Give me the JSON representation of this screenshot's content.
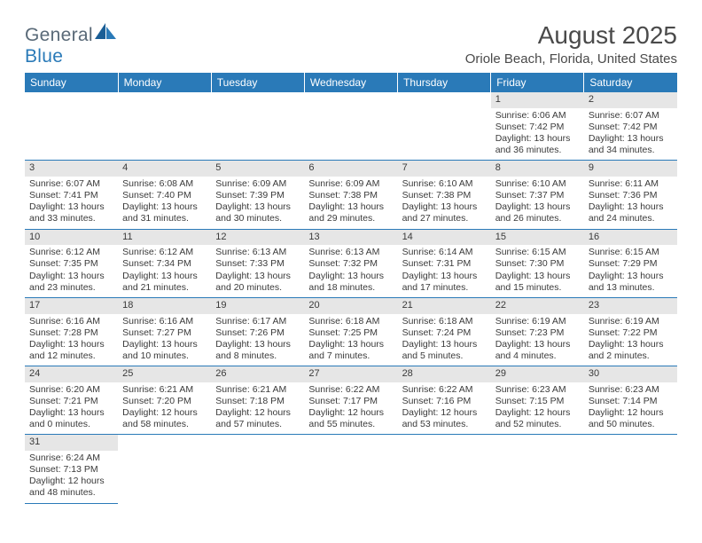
{
  "logo": {
    "text_a": "General",
    "text_b": "Blue"
  },
  "title": "August 2025",
  "location": "Oriole Beach, Florida, United States",
  "colors": {
    "header_bg": "#2a7ab8",
    "header_text": "#ffffff",
    "daynum_bg": "#e6e6e6",
    "text": "#3a3a3a",
    "rule": "#2a7ab8",
    "logo_gray": "#5a6a78",
    "logo_blue": "#2a7ab8"
  },
  "weekdays": [
    "Sunday",
    "Monday",
    "Tuesday",
    "Wednesday",
    "Thursday",
    "Friday",
    "Saturday"
  ],
  "weeks": [
    [
      null,
      null,
      null,
      null,
      null,
      {
        "n": "1",
        "sr": "Sunrise: 6:06 AM",
        "ss": "Sunset: 7:42 PM",
        "d1": "Daylight: 13 hours",
        "d2": "and 36 minutes."
      },
      {
        "n": "2",
        "sr": "Sunrise: 6:07 AM",
        "ss": "Sunset: 7:42 PM",
        "d1": "Daylight: 13 hours",
        "d2": "and 34 minutes."
      }
    ],
    [
      {
        "n": "3",
        "sr": "Sunrise: 6:07 AM",
        "ss": "Sunset: 7:41 PM",
        "d1": "Daylight: 13 hours",
        "d2": "and 33 minutes."
      },
      {
        "n": "4",
        "sr": "Sunrise: 6:08 AM",
        "ss": "Sunset: 7:40 PM",
        "d1": "Daylight: 13 hours",
        "d2": "and 31 minutes."
      },
      {
        "n": "5",
        "sr": "Sunrise: 6:09 AM",
        "ss": "Sunset: 7:39 PM",
        "d1": "Daylight: 13 hours",
        "d2": "and 30 minutes."
      },
      {
        "n": "6",
        "sr": "Sunrise: 6:09 AM",
        "ss": "Sunset: 7:38 PM",
        "d1": "Daylight: 13 hours",
        "d2": "and 29 minutes."
      },
      {
        "n": "7",
        "sr": "Sunrise: 6:10 AM",
        "ss": "Sunset: 7:38 PM",
        "d1": "Daylight: 13 hours",
        "d2": "and 27 minutes."
      },
      {
        "n": "8",
        "sr": "Sunrise: 6:10 AM",
        "ss": "Sunset: 7:37 PM",
        "d1": "Daylight: 13 hours",
        "d2": "and 26 minutes."
      },
      {
        "n": "9",
        "sr": "Sunrise: 6:11 AM",
        "ss": "Sunset: 7:36 PM",
        "d1": "Daylight: 13 hours",
        "d2": "and 24 minutes."
      }
    ],
    [
      {
        "n": "10",
        "sr": "Sunrise: 6:12 AM",
        "ss": "Sunset: 7:35 PM",
        "d1": "Daylight: 13 hours",
        "d2": "and 23 minutes."
      },
      {
        "n": "11",
        "sr": "Sunrise: 6:12 AM",
        "ss": "Sunset: 7:34 PM",
        "d1": "Daylight: 13 hours",
        "d2": "and 21 minutes."
      },
      {
        "n": "12",
        "sr": "Sunrise: 6:13 AM",
        "ss": "Sunset: 7:33 PM",
        "d1": "Daylight: 13 hours",
        "d2": "and 20 minutes."
      },
      {
        "n": "13",
        "sr": "Sunrise: 6:13 AM",
        "ss": "Sunset: 7:32 PM",
        "d1": "Daylight: 13 hours",
        "d2": "and 18 minutes."
      },
      {
        "n": "14",
        "sr": "Sunrise: 6:14 AM",
        "ss": "Sunset: 7:31 PM",
        "d1": "Daylight: 13 hours",
        "d2": "and 17 minutes."
      },
      {
        "n": "15",
        "sr": "Sunrise: 6:15 AM",
        "ss": "Sunset: 7:30 PM",
        "d1": "Daylight: 13 hours",
        "d2": "and 15 minutes."
      },
      {
        "n": "16",
        "sr": "Sunrise: 6:15 AM",
        "ss": "Sunset: 7:29 PM",
        "d1": "Daylight: 13 hours",
        "d2": "and 13 minutes."
      }
    ],
    [
      {
        "n": "17",
        "sr": "Sunrise: 6:16 AM",
        "ss": "Sunset: 7:28 PM",
        "d1": "Daylight: 13 hours",
        "d2": "and 12 minutes."
      },
      {
        "n": "18",
        "sr": "Sunrise: 6:16 AM",
        "ss": "Sunset: 7:27 PM",
        "d1": "Daylight: 13 hours",
        "d2": "and 10 minutes."
      },
      {
        "n": "19",
        "sr": "Sunrise: 6:17 AM",
        "ss": "Sunset: 7:26 PM",
        "d1": "Daylight: 13 hours",
        "d2": "and 8 minutes."
      },
      {
        "n": "20",
        "sr": "Sunrise: 6:18 AM",
        "ss": "Sunset: 7:25 PM",
        "d1": "Daylight: 13 hours",
        "d2": "and 7 minutes."
      },
      {
        "n": "21",
        "sr": "Sunrise: 6:18 AM",
        "ss": "Sunset: 7:24 PM",
        "d1": "Daylight: 13 hours",
        "d2": "and 5 minutes."
      },
      {
        "n": "22",
        "sr": "Sunrise: 6:19 AM",
        "ss": "Sunset: 7:23 PM",
        "d1": "Daylight: 13 hours",
        "d2": "and 4 minutes."
      },
      {
        "n": "23",
        "sr": "Sunrise: 6:19 AM",
        "ss": "Sunset: 7:22 PM",
        "d1": "Daylight: 13 hours",
        "d2": "and 2 minutes."
      }
    ],
    [
      {
        "n": "24",
        "sr": "Sunrise: 6:20 AM",
        "ss": "Sunset: 7:21 PM",
        "d1": "Daylight: 13 hours",
        "d2": "and 0 minutes."
      },
      {
        "n": "25",
        "sr": "Sunrise: 6:21 AM",
        "ss": "Sunset: 7:20 PM",
        "d1": "Daylight: 12 hours",
        "d2": "and 58 minutes."
      },
      {
        "n": "26",
        "sr": "Sunrise: 6:21 AM",
        "ss": "Sunset: 7:18 PM",
        "d1": "Daylight: 12 hours",
        "d2": "and 57 minutes."
      },
      {
        "n": "27",
        "sr": "Sunrise: 6:22 AM",
        "ss": "Sunset: 7:17 PM",
        "d1": "Daylight: 12 hours",
        "d2": "and 55 minutes."
      },
      {
        "n": "28",
        "sr": "Sunrise: 6:22 AM",
        "ss": "Sunset: 7:16 PM",
        "d1": "Daylight: 12 hours",
        "d2": "and 53 minutes."
      },
      {
        "n": "29",
        "sr": "Sunrise: 6:23 AM",
        "ss": "Sunset: 7:15 PM",
        "d1": "Daylight: 12 hours",
        "d2": "and 52 minutes."
      },
      {
        "n": "30",
        "sr": "Sunrise: 6:23 AM",
        "ss": "Sunset: 7:14 PM",
        "d1": "Daylight: 12 hours",
        "d2": "and 50 minutes."
      }
    ],
    [
      {
        "n": "31",
        "sr": "Sunrise: 6:24 AM",
        "ss": "Sunset: 7:13 PM",
        "d1": "Daylight: 12 hours",
        "d2": "and 48 minutes."
      },
      null,
      null,
      null,
      null,
      null,
      null
    ]
  ]
}
